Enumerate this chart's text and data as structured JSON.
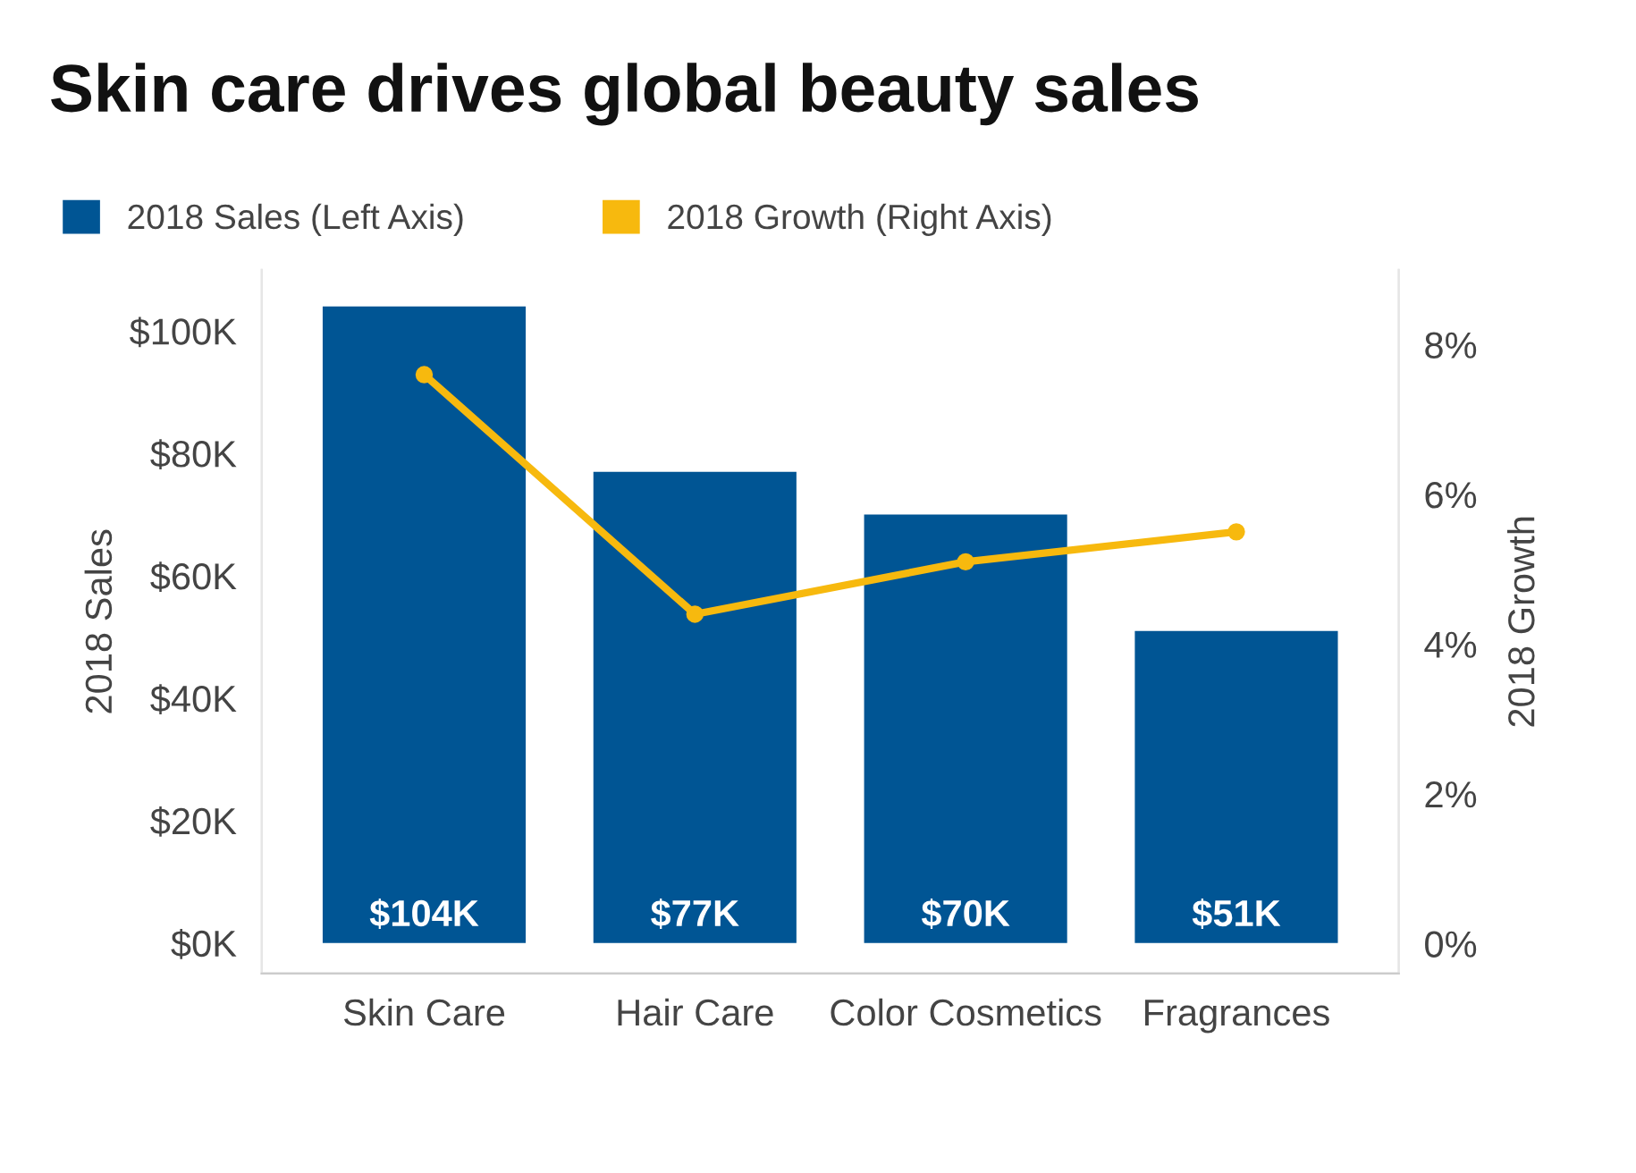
{
  "chart_data": {
    "type": "bar",
    "title": "Skin care drives global beauty sales",
    "ylabel": "2018 Sales",
    "y2label": "2018 Growth",
    "categories": [
      "Skin Care",
      "Hair Care",
      "Color Cosmetics",
      "Fragrances"
    ],
    "series": [
      {
        "name": "2018 Sales (Left Axis)",
        "color": "#005594",
        "values": [
          104,
          77,
          70,
          51
        ],
        "value_labels": [
          "$104K",
          "$77K",
          "$70K",
          "$51K"
        ]
      },
      {
        "name": "2018 Growth (Right Axis)",
        "type": "line",
        "axis": "y2",
        "color": "#f7b90e",
        "values": [
          7.6,
          4.4,
          5.1,
          5.5
        ],
        "marker": "circle"
      }
    ],
    "ylim": [
      -5,
      110
    ],
    "yticks": [
      {
        "value": 0,
        "label": "$0K"
      },
      {
        "value": 20,
        "label": "$20K"
      },
      {
        "value": 40,
        "label": "$40K"
      },
      {
        "value": 60,
        "label": "$60K"
      },
      {
        "value": 80,
        "label": "$80K"
      },
      {
        "value": 100,
        "label": "$100K"
      }
    ],
    "y2lim": [
      -0.4,
      9
    ],
    "y2ticks": [
      {
        "value": 0,
        "label": "0%"
      },
      {
        "value": 2,
        "label": "2%"
      },
      {
        "value": 4,
        "label": "4%"
      },
      {
        "value": 6,
        "label": "6%"
      },
      {
        "value": 8,
        "label": "8%"
      }
    ],
    "grid": false,
    "legend": "top left"
  }
}
